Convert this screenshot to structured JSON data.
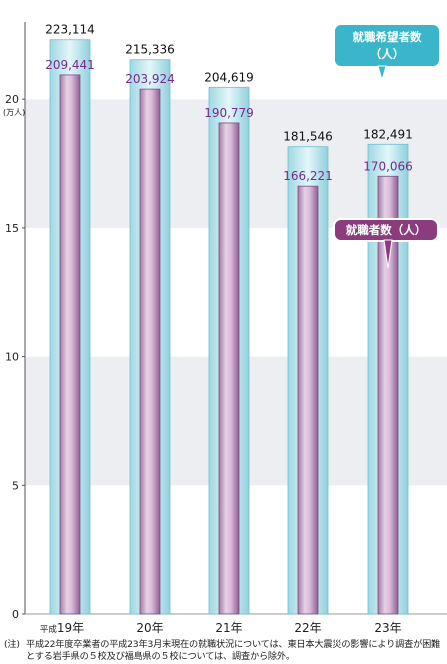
{
  "chart_data": {
    "type": "bar",
    "categories_prefix": "平成",
    "categories": [
      "19年",
      "20年",
      "21年",
      "22年",
      "23年"
    ],
    "ylabel": "(万人)",
    "ylim": [
      0,
      23
    ],
    "yticks": [
      0,
      5,
      10,
      15,
      20
    ],
    "grid": "alternating horizontal bands",
    "series": [
      {
        "name": "就職希望者数（人）",
        "values": [
          223114,
          215336,
          204619,
          181546,
          182491
        ],
        "labels": [
          "223,114",
          "215,336",
          "204,619",
          "181,546",
          "182,491"
        ],
        "color": "#bde6ee"
      },
      {
        "name": "就職者数（人）",
        "values": [
          209441,
          203924,
          190779,
          166221,
          170066
        ],
        "labels": [
          "209,441",
          "203,924",
          "190,779",
          "166,221",
          "170,066"
        ],
        "color": "#c9a6c9"
      }
    ],
    "callouts": {
      "applicants": {
        "line1": "就職希望者数",
        "line2": "（人）",
        "color": "#3ab5c9"
      },
      "employed": {
        "text": "就職者数（人）",
        "color": "#8a3c7c"
      }
    },
    "colors": {
      "band": "#eceef1",
      "applicants_label": "#111111",
      "employed_label": "#7a2a88"
    }
  },
  "footnote": {
    "prefix": "(注)",
    "text": "平成22年度卒業者の平成23年3月末現在の就職状況については、東日本大震災の影響により調査が困難とする岩手県の５校及び福島県の５校については、調査から除外。"
  }
}
